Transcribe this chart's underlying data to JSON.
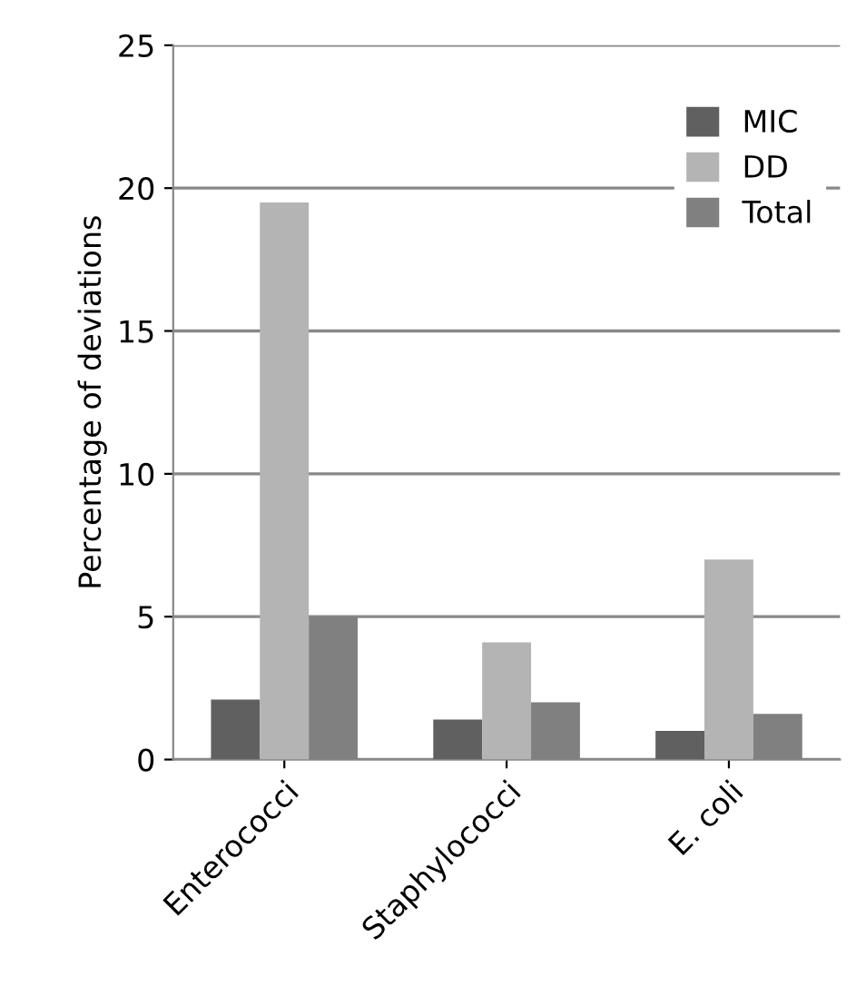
{
  "chart_data": {
    "type": "bar",
    "ylabel": "Percentage of deviations",
    "categories": [
      "Enterococci",
      "Staphylococci",
      "E. coli"
    ],
    "series": [
      {
        "name": "MIC",
        "color": "#606060",
        "values": [
          2.1,
          1.4,
          1.0
        ]
      },
      {
        "name": "DD",
        "color": "#b4b4b4",
        "values": [
          19.5,
          4.1,
          7.0
        ]
      },
      {
        "name": "Total",
        "color": "#808080",
        "values": [
          5.0,
          2.0,
          1.6
        ]
      }
    ],
    "ylim": [
      0,
      25
    ],
    "yticks": [
      0,
      5,
      10,
      15,
      20,
      25
    ],
    "grid": "y",
    "legend": "top right"
  }
}
